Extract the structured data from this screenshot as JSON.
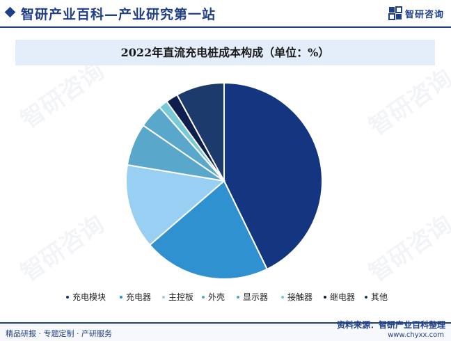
{
  "header": {
    "title": "智研产业百科—产业研究第一站",
    "brand_name": "智研咨询"
  },
  "watermark_text": "智研咨询",
  "chart_data": {
    "type": "pie",
    "title": "2022年直流充电桩成本构成（单位：%）",
    "slices": [
      {
        "label": "充电模块",
        "value": 43,
        "color": "#14357f"
      },
      {
        "label": "充电器",
        "value": 21,
        "color": "#3091d1"
      },
      {
        "label": "主控板",
        "value": 14,
        "color": "#98cff2"
      },
      {
        "label": "外壳",
        "value": 7,
        "color": "#5aa7cc"
      },
      {
        "label": "显示器",
        "value": 4,
        "color": "#5aa7cc"
      },
      {
        "label": "接触器",
        "value": 1.5,
        "color": "#79c9d6"
      },
      {
        "label": "继电器",
        "value": 2,
        "color": "#0e1f4d"
      },
      {
        "label": "其他",
        "value": 8,
        "color": "#1c3a6b"
      }
    ]
  },
  "footer": {
    "left_text": "精品研报 · 专题定制 · 产研服务",
    "source": "资料来源：智研产业百科整理",
    "url": "www.chyxx.com"
  }
}
